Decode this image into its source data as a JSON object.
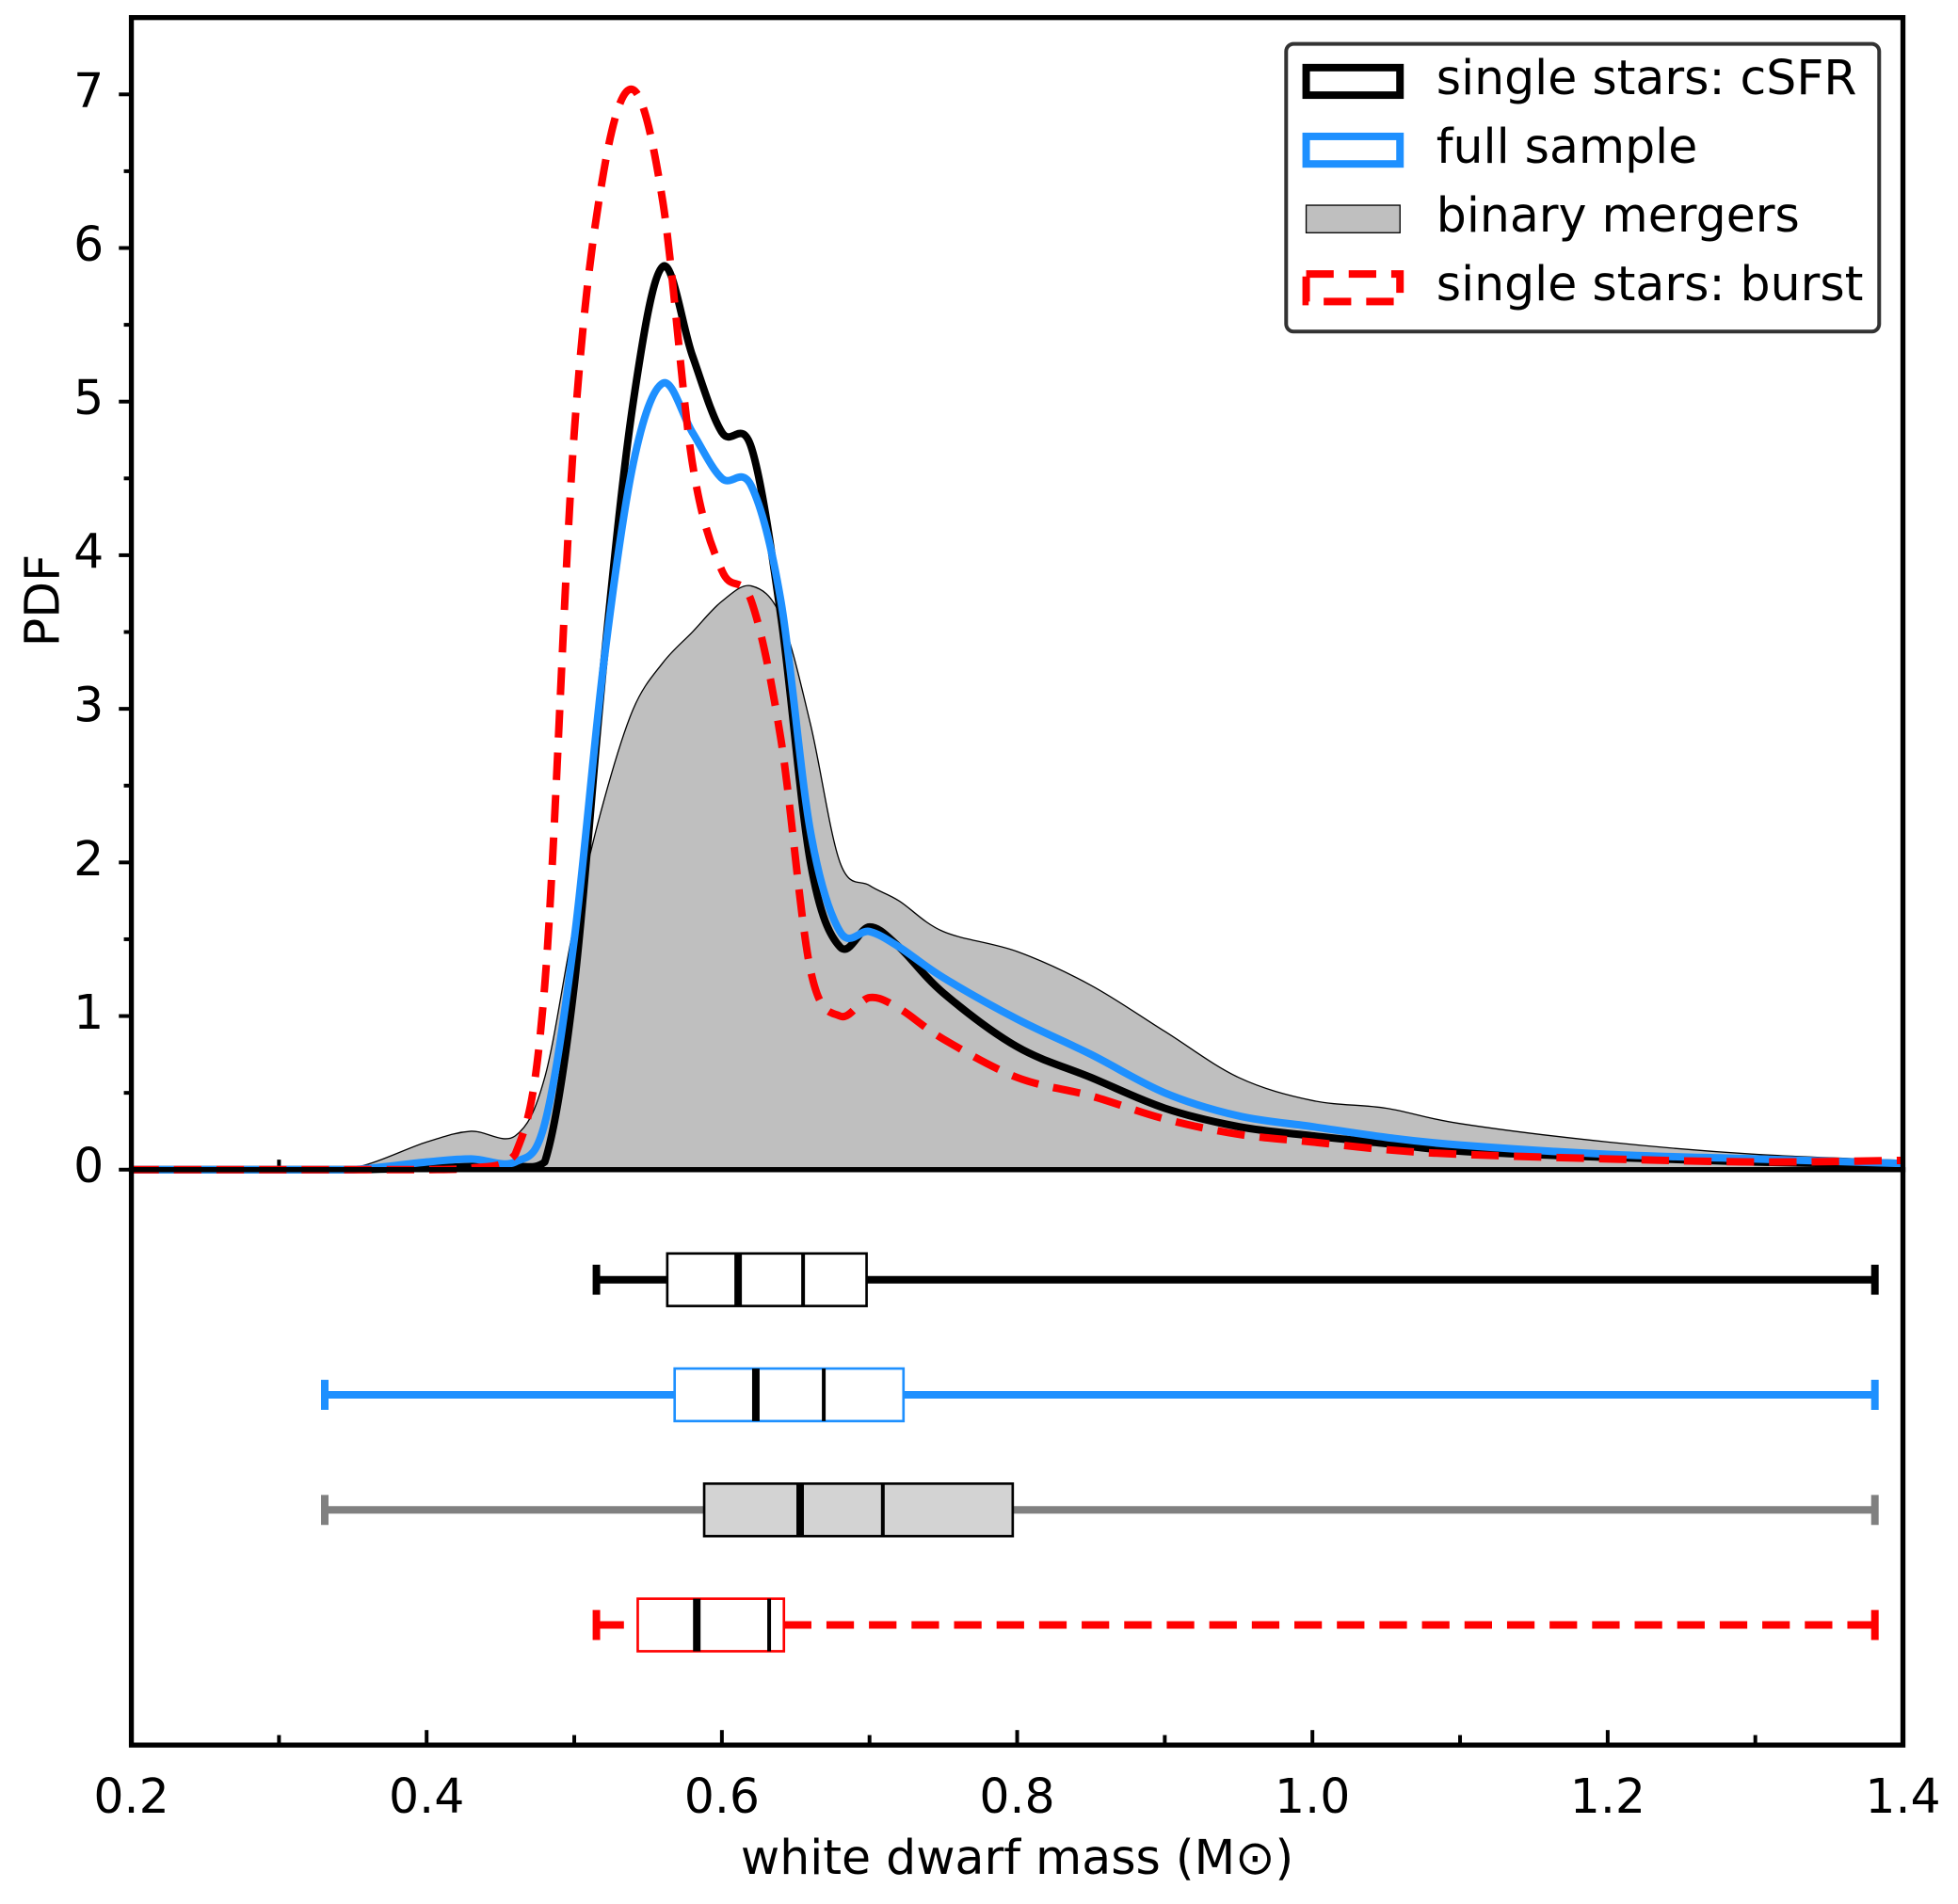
{
  "chart_data": [
    {
      "type": "line",
      "ylabel": "PDF",
      "legend": "upper right",
      "x": [
        0.2,
        0.3,
        0.35,
        0.4,
        0.43,
        0.46,
        0.48,
        0.5,
        0.52,
        0.54,
        0.56,
        0.58,
        0.6,
        0.62,
        0.64,
        0.66,
        0.68,
        0.7,
        0.72,
        0.75,
        0.8,
        0.85,
        0.9,
        0.95,
        1.0,
        1.05,
        1.1,
        1.2,
        1.3,
        1.4
      ],
      "series": [
        {
          "name": "single stars: cSFR",
          "color": "#000000",
          "style": "solid",
          "values": [
            0,
            0,
            0,
            0.01,
            0.02,
            0.02,
            0.05,
            1.2,
            3.3,
            5.0,
            5.88,
            5.3,
            4.8,
            4.7,
            3.6,
            2.0,
            1.45,
            1.58,
            1.45,
            1.15,
            0.8,
            0.6,
            0.4,
            0.28,
            0.22,
            0.17,
            0.12,
            0.08,
            0.05,
            0.03
          ]
        },
        {
          "name": "full sample",
          "color": "#1e90ff",
          "style": "solid",
          "values": [
            0,
            0,
            0,
            0.05,
            0.07,
            0.05,
            0.3,
            1.5,
            3.3,
            4.6,
            5.12,
            4.8,
            4.5,
            4.45,
            3.7,
            2.2,
            1.55,
            1.55,
            1.45,
            1.25,
            0.98,
            0.75,
            0.5,
            0.35,
            0.28,
            0.21,
            0.16,
            0.1,
            0.07,
            0.04
          ]
        },
        {
          "name": "binary mergers",
          "color": "#bfbfbf",
          "style": "area",
          "values": [
            0,
            0,
            0.01,
            0.18,
            0.25,
            0.22,
            0.6,
            1.6,
            2.4,
            3.0,
            3.3,
            3.5,
            3.7,
            3.8,
            3.6,
            2.9,
            2.0,
            1.85,
            1.75,
            1.55,
            1.42,
            1.2,
            0.9,
            0.6,
            0.45,
            0.4,
            0.3,
            0.18,
            0.1,
            0.06
          ]
        },
        {
          "name": "single stars: burst",
          "color": "#ff0000",
          "style": "dashed",
          "values": [
            0,
            0,
            0,
            0,
            0.01,
            0.1,
            1.2,
            4.8,
            6.5,
            7.03,
            6.3,
            4.6,
            3.9,
            3.7,
            2.8,
            1.3,
            1.0,
            1.12,
            1.05,
            0.85,
            0.6,
            0.48,
            0.33,
            0.23,
            0.18,
            0.13,
            0.1,
            0.07,
            0.05,
            0.06
          ]
        }
      ],
      "xlim": [
        0.2,
        1.4
      ],
      "ylim": [
        0,
        7.5
      ],
      "yticks": [
        0,
        1,
        2,
        3,
        4,
        5,
        6,
        7
      ],
      "yminorticks": [
        0.5,
        1.5,
        2.5,
        3.5,
        4.5,
        5.5,
        6.5
      ],
      "xminorticks": [
        0.3,
        0.4,
        0.5,
        0.6,
        0.7,
        0.8,
        0.9,
        1.0,
        1.1,
        1.2,
        1.3
      ]
    },
    {
      "type": "box",
      "xlabel": "white dwarf mass (M⊙)",
      "boxes": [
        {
          "whislo": 0.515,
          "q1": 0.563,
          "med": 0.611,
          "mean": 0.655,
          "q3": 0.698,
          "whishi": 1.381,
          "color": "#000000",
          "edgecolor": "#000000",
          "facecolor": "#ffffff",
          "linestyle": "solid"
        },
        {
          "whislo": 0.331,
          "q1": 0.568,
          "med": 0.623,
          "mean": 0.669,
          "q3": 0.723,
          "whishi": 1.381,
          "color": "#1e90ff",
          "edgecolor": "#1e90ff",
          "facecolor": "#ffffff",
          "linestyle": "solid"
        },
        {
          "whislo": 0.331,
          "q1": 0.588,
          "med": 0.653,
          "mean": 0.709,
          "q3": 0.797,
          "whishi": 1.381,
          "color": "#808080",
          "edgecolor": "#000000",
          "facecolor": "#d3d3d3",
          "linestyle": "solid"
        },
        {
          "whislo": 0.515,
          "q1": 0.543,
          "med": 0.583,
          "mean": 0.632,
          "q3": 0.642,
          "whishi": 1.381,
          "color": "#ff0000",
          "edgecolor": "#ff0000",
          "facecolor": "#ffffff",
          "linestyle": "dashed"
        }
      ],
      "xlim": [
        0.2,
        1.4
      ],
      "xticks": [
        0.2,
        0.4,
        0.6,
        0.8,
        {
          "value": 1,
          "label": "1.0"
        },
        1.2,
        1.4
      ],
      "xminorticks": [
        0.3,
        0.5,
        0.7,
        0.9,
        1.1,
        1.3
      ]
    }
  ]
}
